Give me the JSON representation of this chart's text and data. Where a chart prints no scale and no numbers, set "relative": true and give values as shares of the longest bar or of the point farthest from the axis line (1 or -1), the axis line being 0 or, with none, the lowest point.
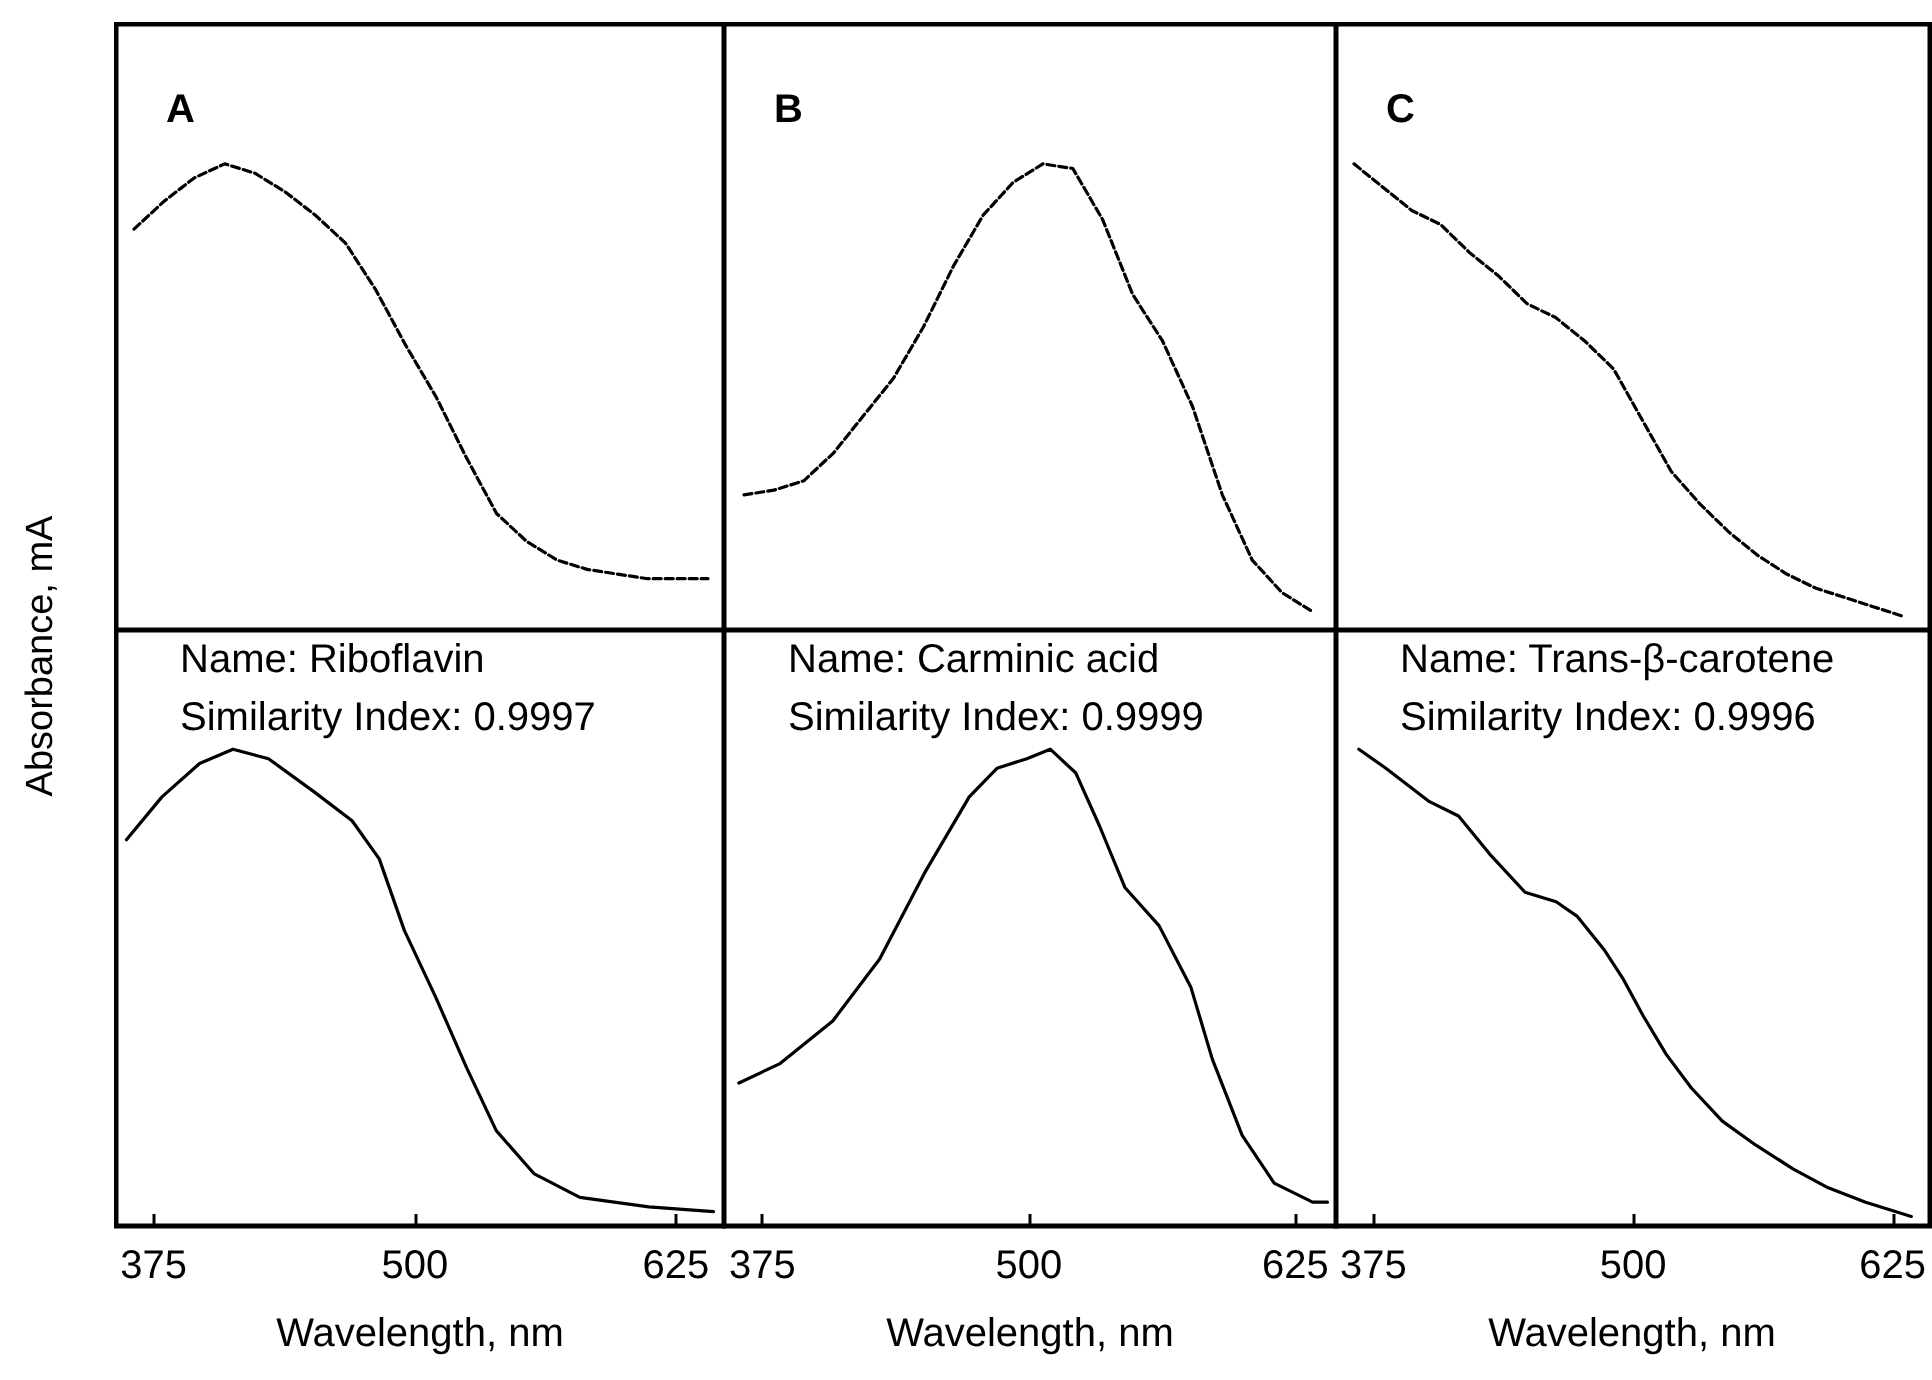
{
  "chart_data": [
    {
      "type": "line",
      "relative": true,
      "line_style": "dashed",
      "tick_labels": false,
      "annotations": [
        "A"
      ],
      "categories": [
        null,
        null,
        null,
        null,
        null,
        null,
        null,
        null,
        null,
        null,
        null,
        null,
        null,
        null,
        null,
        null,
        null,
        null,
        null,
        null
      ],
      "series": [
        {
          "color": "#000000",
          "values": [
            0.86,
            0.92,
            0.97,
            1.0,
            0.98,
            0.94,
            0.89,
            0.83,
            0.73,
            0.61,
            0.5,
            0.37,
            0.25,
            0.19,
            0.15,
            0.13,
            0.12,
            0.11,
            0.11,
            0.11
          ]
        }
      ]
    },
    {
      "type": "line",
      "relative": true,
      "line_style": "dashed",
      "tick_labels": false,
      "annotations": [
        "B"
      ],
      "categories": [
        null,
        null,
        null,
        null,
        null,
        null,
        null,
        null,
        null,
        null,
        null,
        null,
        null,
        null,
        null,
        null,
        null,
        null,
        null,
        null
      ],
      "series": [
        {
          "color": "#000000",
          "values": [
            0.29,
            0.3,
            0.32,
            0.38,
            0.46,
            0.54,
            0.65,
            0.78,
            0.89,
            0.96,
            1.0,
            0.99,
            0.88,
            0.72,
            0.62,
            0.48,
            0.29,
            0.15,
            0.08,
            0.04
          ]
        }
      ]
    },
    {
      "type": "line",
      "relative": true,
      "line_style": "dashed",
      "tick_labels": false,
      "annotations": [
        "C"
      ],
      "categories": [
        null,
        null,
        null,
        null,
        null,
        null,
        null,
        null,
        null,
        null,
        null,
        null,
        null,
        null,
        null,
        null,
        null,
        null,
        null,
        null
      ],
      "series": [
        {
          "color": "#000000",
          "values": [
            1.0,
            0.95,
            0.9,
            0.87,
            0.81,
            0.76,
            0.7,
            0.67,
            0.62,
            0.56,
            0.45,
            0.34,
            0.27,
            0.21,
            0.16,
            0.12,
            0.09,
            0.07,
            0.05,
            0.03
          ]
        }
      ]
    },
    {
      "type": "line",
      "relative": true,
      "line_style": "solid",
      "tick_labels": "x",
      "xlim": [
        357,
        648
      ],
      "xticks": [
        375,
        500,
        625
      ],
      "xlabel": "Wavelength, nm",
      "ylabel": "Absorbance, mA",
      "annotations": [
        "Name: Riboflavin",
        "Similarity Index: 0.9997"
      ],
      "x": [
        362,
        379,
        397,
        413,
        430,
        452,
        470,
        483,
        495,
        510,
        525,
        539,
        557,
        579,
        612,
        643
      ],
      "series": [
        {
          "color": "#000000",
          "values": [
            0.81,
            0.9,
            0.97,
            1.0,
            0.98,
            0.91,
            0.85,
            0.77,
            0.62,
            0.48,
            0.33,
            0.2,
            0.11,
            0.06,
            0.04,
            0.03
          ]
        }
      ]
    },
    {
      "type": "line",
      "relative": true,
      "line_style": "solid",
      "tick_labels": "x",
      "xlim": [
        357,
        644
      ],
      "xticks": [
        375,
        500,
        625
      ],
      "xlabel": "Wavelength, nm",
      "annotations": [
        "Name: Carminic acid",
        "Similarity Index: 0.9999"
      ],
      "x": [
        364,
        383,
        408,
        430,
        451,
        472,
        485,
        499,
        510,
        522,
        533,
        545,
        561,
        576,
        586,
        600,
        615,
        633,
        640
      ],
      "series": [
        {
          "color": "#000000",
          "values": [
            0.3,
            0.34,
            0.43,
            0.56,
            0.74,
            0.9,
            0.96,
            0.98,
            1.0,
            0.95,
            0.84,
            0.71,
            0.63,
            0.5,
            0.35,
            0.19,
            0.09,
            0.05,
            0.05
          ]
        }
      ]
    },
    {
      "type": "line",
      "relative": true,
      "line_style": "solid",
      "tick_labels": "x",
      "xlim": [
        357,
        642
      ],
      "xticks": [
        375,
        500,
        625
      ],
      "xlabel": "Wavelength, nm",
      "annotations": [
        "Name: Trans-β-carotene",
        "Similarity Index: 0.9996"
      ],
      "x": [
        368,
        381,
        402,
        416,
        431,
        448,
        463,
        473,
        486,
        495,
        505,
        516,
        528,
        543,
        559,
        577,
        594,
        612,
        634
      ],
      "series": [
        {
          "color": "#000000",
          "values": [
            1.0,
            0.96,
            0.89,
            0.86,
            0.78,
            0.7,
            0.68,
            0.65,
            0.58,
            0.52,
            0.44,
            0.36,
            0.29,
            0.22,
            0.17,
            0.12,
            0.08,
            0.05,
            0.02
          ]
        }
      ]
    }
  ]
}
